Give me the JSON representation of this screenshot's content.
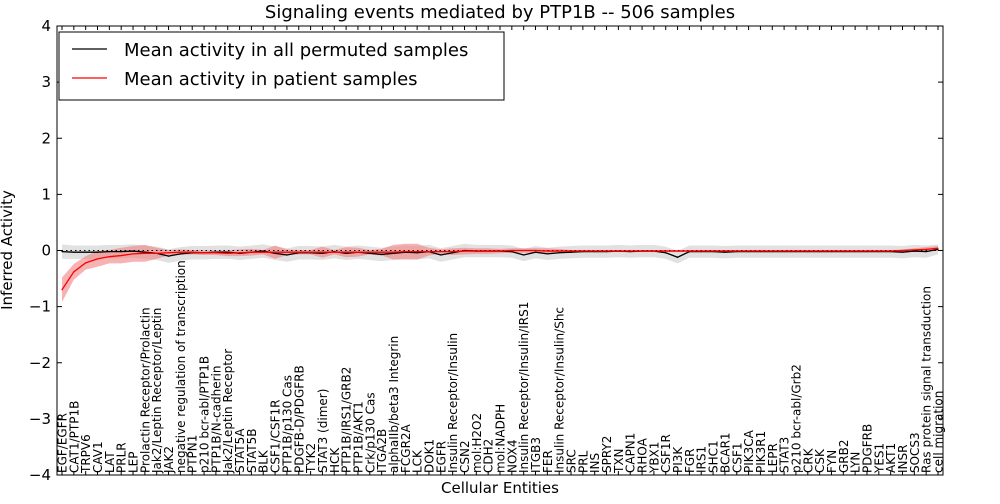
{
  "chart_data": {
    "type": "line",
    "title": "Signaling events mediated by PTP1B -- 506 samples",
    "xlabel": "Cellular Entities",
    "ylabel": "Inferred Activity",
    "ylim": [
      -4,
      4
    ],
    "yticks": [
      -4,
      -3,
      -2,
      -1,
      0,
      1,
      2,
      3,
      4
    ],
    "legend_position": "top-left",
    "categories": [
      "EGF/EGFR",
      "CAT1/PTP1B",
      "TRPV6",
      "CAV1",
      "LAT",
      "PRLR",
      "LEP",
      "Prolactin Receptor/Prolactin",
      "Jak2/Leptin Receptor/Leptin",
      "JAK2",
      "negative regulation of transcription",
      "PTPN1",
      "p210 bcr-abl/PTP1B",
      "PTP1B/N-cadherin",
      "Jak2/Leptin Receptor",
      "STAT5A",
      "STAT5B",
      "BLK",
      "CSF1/CSF1R",
      "PTP1B/p130 Cas",
      "PDGFB-D/PDGFRB",
      "TYK2",
      "STAT3 (dimer)",
      "HCK",
      "PTP1B/IRS1/GRB2",
      "PTP1B/AKT1",
      "Crk/p130 Cas",
      "ITGA2B",
      "alphaIIb/beta3 Integrin",
      "FCGR2A",
      "LCK",
      "DOK1",
      "EGFR",
      "Insulin Receptor/Insulin",
      "CSN2",
      "mol:H2O2",
      "CDH2",
      "mol:NADPH",
      "NOX4",
      "Insulin Receptor/Insulin/IRS1",
      "ITGB3",
      "FER",
      "Insulin Receptor/Insulin/Shc",
      "SRC",
      "PRL",
      "INS",
      "SPRY2",
      "TXN",
      "CAPN1",
      "RHOA",
      "YBX1",
      "CSF1R",
      "PI3K",
      "FGR",
      "IRS1",
      "SHC1",
      "BCAR1",
      "CSF1",
      "PIK3CA",
      "PIK3R1",
      "LEPR",
      "STAT3",
      "p210 bcr-abl/Grb2",
      "CRK",
      "CSK",
      "FYN",
      "GRB2",
      "LYN",
      "PDGFRB",
      "YES1",
      "AKT1",
      "INSR",
      "SOCS3",
      "Ras protein signal transduction",
      "cell migration"
    ],
    "series": [
      {
        "name": "Mean activity in all permuted samples",
        "color": "#000000",
        "band_color": "#b3b3b3",
        "values": [
          -0.02,
          -0.03,
          -0.03,
          -0.03,
          -0.02,
          -0.02,
          -0.01,
          -0.03,
          -0.05,
          -0.1,
          -0.06,
          -0.04,
          -0.04,
          -0.03,
          -0.03,
          -0.05,
          -0.03,
          -0.01,
          -0.05,
          -0.08,
          -0.04,
          -0.04,
          -0.05,
          -0.02,
          -0.05,
          -0.03,
          -0.05,
          -0.07,
          -0.05,
          -0.03,
          -0.04,
          -0.02,
          -0.08,
          -0.04,
          0.0,
          -0.01,
          -0.01,
          -0.01,
          -0.02,
          -0.08,
          -0.03,
          -0.06,
          -0.04,
          -0.03,
          -0.02,
          -0.02,
          -0.02,
          -0.01,
          -0.02,
          -0.01,
          -0.01,
          -0.04,
          -0.12,
          -0.02,
          -0.02,
          -0.02,
          -0.03,
          -0.02,
          -0.02,
          -0.02,
          -0.02,
          -0.02,
          -0.02,
          -0.02,
          -0.02,
          -0.02,
          -0.02,
          -0.02,
          -0.02,
          -0.02,
          -0.02,
          -0.03,
          -0.01,
          -0.02,
          0.02
        ],
        "spread": [
          0.13,
          0.12,
          0.12,
          0.12,
          0.12,
          0.12,
          0.12,
          0.12,
          0.12,
          0.12,
          0.12,
          0.12,
          0.12,
          0.12,
          0.12,
          0.12,
          0.12,
          0.12,
          0.12,
          0.12,
          0.12,
          0.12,
          0.12,
          0.12,
          0.12,
          0.12,
          0.12,
          0.12,
          0.12,
          0.12,
          0.12,
          0.12,
          0.12,
          0.12,
          0.12,
          0.11,
          0.11,
          0.11,
          0.11,
          0.11,
          0.11,
          0.11,
          0.11,
          0.11,
          0.11,
          0.11,
          0.11,
          0.11,
          0.11,
          0.11,
          0.11,
          0.11,
          0.11,
          0.11,
          0.11,
          0.11,
          0.11,
          0.11,
          0.11,
          0.11,
          0.11,
          0.11,
          0.11,
          0.11,
          0.11,
          0.11,
          0.11,
          0.11,
          0.11,
          0.11,
          0.11,
          0.11,
          0.11,
          0.11,
          0.09
        ]
      },
      {
        "name": "Mean activity in patient samples",
        "color": "#ff0000",
        "band_color": "#f08080",
        "values": [
          -0.7,
          -0.38,
          -0.22,
          -0.15,
          -0.11,
          -0.09,
          -0.06,
          -0.05,
          -0.05,
          -0.04,
          -0.03,
          -0.03,
          -0.04,
          -0.04,
          -0.05,
          -0.04,
          -0.03,
          -0.03,
          -0.03,
          -0.03,
          -0.03,
          -0.03,
          -0.03,
          -0.03,
          -0.03,
          -0.03,
          -0.03,
          -0.03,
          -0.03,
          -0.02,
          -0.02,
          -0.02,
          -0.02,
          -0.02,
          -0.01,
          -0.01,
          -0.01,
          -0.01,
          0.0,
          0.0,
          0.0,
          -0.01,
          -0.01,
          -0.01,
          -0.01,
          -0.01,
          -0.01,
          -0.01,
          -0.01,
          -0.01,
          -0.01,
          -0.01,
          -0.01,
          -0.01,
          -0.01,
          -0.01,
          -0.01,
          -0.01,
          -0.01,
          -0.01,
          -0.01,
          -0.01,
          -0.01,
          -0.01,
          -0.01,
          -0.01,
          -0.01,
          -0.01,
          -0.01,
          -0.01,
          -0.01,
          0.0,
          0.01,
          0.02,
          0.04
        ],
        "spread": [
          0.22,
          0.14,
          0.12,
          0.14,
          0.12,
          0.14,
          0.14,
          0.15,
          0.1,
          0.05,
          0.05,
          0.04,
          0.04,
          0.04,
          0.05,
          0.06,
          0.06,
          0.04,
          0.12,
          0.05,
          0.04,
          0.04,
          0.1,
          0.04,
          0.09,
          0.08,
          0.04,
          0.06,
          0.13,
          0.14,
          0.14,
          0.07,
          0.04,
          0.06,
          0.06,
          0.05,
          0.05,
          0.04,
          0.04,
          0.04,
          0.04,
          0.05,
          0.04,
          0.02,
          0.02,
          0.02,
          0.02,
          0.02,
          0.02,
          0.02,
          0.02,
          0.02,
          0.02,
          0.02,
          0.02,
          0.02,
          0.02,
          0.02,
          0.02,
          0.02,
          0.02,
          0.02,
          0.02,
          0.02,
          0.02,
          0.02,
          0.02,
          0.02,
          0.02,
          0.02,
          0.02,
          0.02,
          0.03,
          0.04,
          0.04
        ]
      }
    ]
  }
}
